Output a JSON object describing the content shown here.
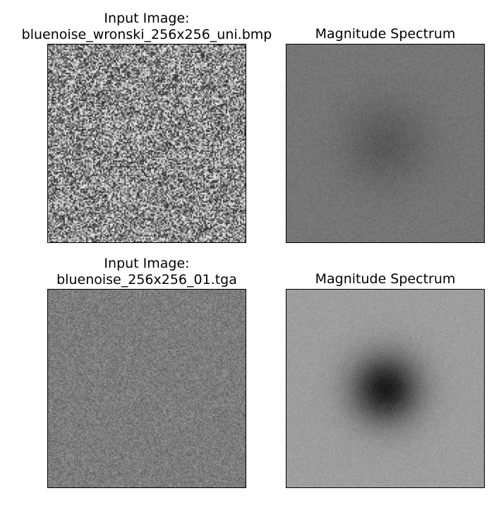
{
  "panels": [
    {
      "title": "Input Image:\nbluenoise_wronski_256x256_uni.bmp",
      "kind": "noise-image",
      "style": "coarse"
    },
    {
      "title": "Magnitude Spectrum",
      "kind": "spectrum",
      "style": "weak-center"
    },
    {
      "title": "Input Image:\nbluenoise_256x256_01.tga",
      "kind": "noise-image",
      "style": "fine"
    },
    {
      "title": "Magnitude Spectrum",
      "kind": "spectrum",
      "style": "strong-center"
    }
  ],
  "colormap": "gray"
}
